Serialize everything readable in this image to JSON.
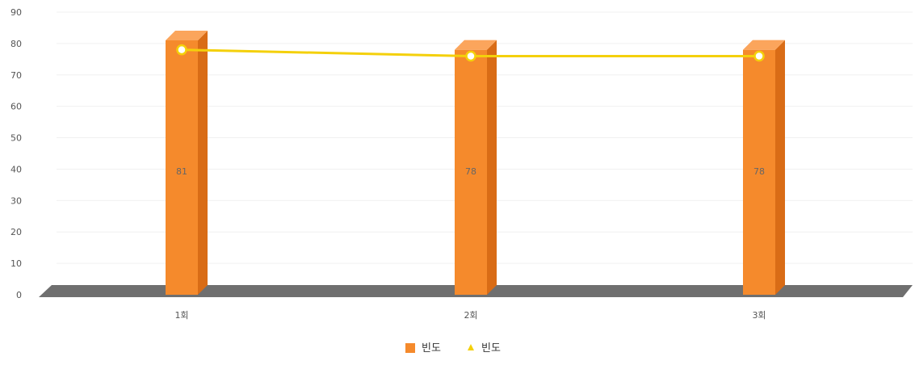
{
  "chart_data": {
    "type": "bar",
    "categories": [
      "1회",
      "2회",
      "3회"
    ],
    "series": [
      {
        "name": "빈도",
        "kind": "bar",
        "values": [
          81,
          78,
          78
        ],
        "color": "#f58a2c"
      },
      {
        "name": "빈도",
        "kind": "line",
        "values": [
          78,
          76,
          76
        ],
        "color": "#f4d00b"
      }
    ],
    "data_labels": [
      "81",
      "78",
      "78"
    ],
    "ylim": [
      0,
      90
    ],
    "yticks": [
      0,
      10,
      20,
      30,
      40,
      50,
      60,
      70,
      80,
      90
    ],
    "grid": true,
    "legend_position": "bottom",
    "three_d": true
  }
}
